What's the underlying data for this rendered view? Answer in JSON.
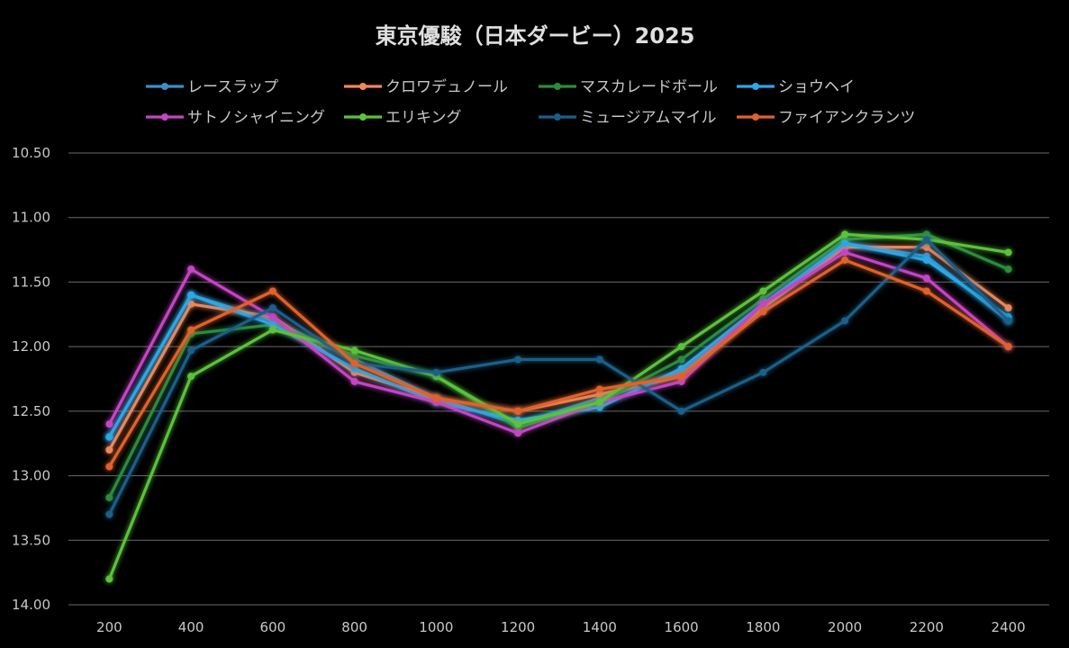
{
  "chart_data": {
    "type": "line",
    "title": "東京優駿（日本ダービー）2025",
    "xlabel": "",
    "ylabel": "",
    "x": [
      "200",
      "400",
      "600",
      "800",
      "1000",
      "1200",
      "1400",
      "1600",
      "1800",
      "2000",
      "2200",
      "2400"
    ],
    "ylim": [
      10.5,
      14.0
    ],
    "y_reversed": true,
    "y_ticks": [
      "10.50",
      "11.00",
      "11.50",
      "12.00",
      "12.50",
      "13.00",
      "13.50",
      "14.00"
    ],
    "grid": "horizontal",
    "legend_position": "top",
    "series": [
      {
        "name": "レースラップ",
        "color": "#3a8fc7",
        "values": [
          12.7,
          11.6,
          11.8,
          12.1,
          12.4,
          12.6,
          12.4,
          12.2,
          11.7,
          11.2,
          11.3,
          11.8
        ]
      },
      {
        "name": "クロワデュノール",
        "color": "#f0875a",
        "values": [
          12.8,
          11.67,
          11.77,
          12.2,
          12.4,
          12.5,
          12.37,
          12.23,
          11.7,
          11.23,
          11.23,
          11.7
        ]
      },
      {
        "name": "マスカレードボール",
        "color": "#2e8b3e",
        "values": [
          13.17,
          11.9,
          11.83,
          12.07,
          12.23,
          12.63,
          12.43,
          12.1,
          11.63,
          11.17,
          11.13,
          11.4
        ]
      },
      {
        "name": "ショウヘイ",
        "color": "#2aa8e8",
        "values": [
          12.7,
          11.6,
          11.83,
          12.17,
          12.43,
          12.57,
          12.47,
          12.17,
          11.67,
          11.2,
          11.33,
          11.77
        ]
      },
      {
        "name": "サトノシャイニング",
        "color": "#c445c4",
        "values": [
          12.6,
          11.4,
          11.77,
          12.27,
          12.43,
          12.67,
          12.43,
          12.27,
          11.67,
          11.27,
          11.47,
          12.0
        ]
      },
      {
        "name": "エリキング",
        "color": "#5cc23a",
        "values": [
          13.8,
          12.23,
          11.87,
          12.03,
          12.23,
          12.6,
          12.43,
          12.0,
          11.57,
          11.13,
          11.17,
          11.27
        ]
      },
      {
        "name": "ミュージアムマイル",
        "color": "#1a5f88",
        "values": [
          13.3,
          12.03,
          11.7,
          12.13,
          12.2,
          12.1,
          12.1,
          12.5,
          12.2,
          11.8,
          11.17,
          11.8
        ]
      },
      {
        "name": "ファイアンクランツ",
        "color": "#e0622a",
        "values": [
          12.93,
          11.87,
          11.57,
          12.13,
          12.4,
          12.5,
          12.33,
          12.23,
          11.73,
          11.33,
          11.57,
          12.0
        ]
      }
    ]
  }
}
